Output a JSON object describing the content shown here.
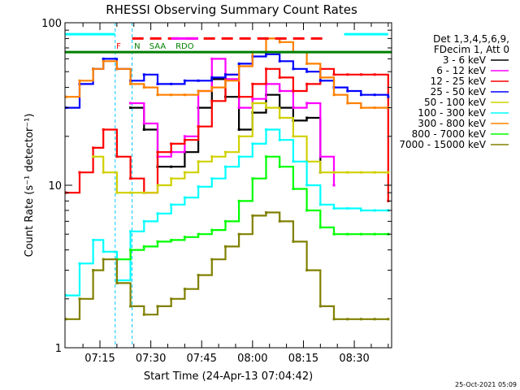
{
  "chart_data": {
    "type": "line",
    "title": "RHESSI Observing Summary Count Rates",
    "xlabel": "Start Time (24-Apr-13 07:04:42)",
    "ylabel": "Count Rate (s⁻¹ detector⁻¹)",
    "y_scale": "log",
    "ylim": [
      1,
      100
    ],
    "xlim": [
      "07:04:42",
      "08:41:00"
    ],
    "x_ticks": [
      "07:15",
      "07:30",
      "07:45",
      "08:00",
      "08:15",
      "08:30"
    ],
    "y_ticks": [
      "1",
      "10",
      "100"
    ],
    "legend_header": [
      "Det 1,3,4,5,6,9,",
      "FDecim 1, Att 0"
    ],
    "legend_position": "right",
    "annotations": [
      {
        "text": "F",
        "x": "07:20:30"
      },
      {
        "text": "N",
        "x": "07:26:00"
      },
      {
        "text": "SAA",
        "x": "07:32:00"
      },
      {
        "text": "RDO",
        "x": "07:40:00"
      }
    ],
    "dashed_markers_x": [
      "07:19:30",
      "07:24:30"
    ],
    "x": [
      "07:05",
      "07:09",
      "07:13",
      "07:16",
      "07:20",
      "07:24",
      "07:28",
      "07:32",
      "07:36",
      "07:40",
      "07:44",
      "07:48",
      "07:52",
      "07:56",
      "08:00",
      "08:04",
      "08:08",
      "08:12",
      "08:16",
      "08:20",
      "08:24",
      "08:28",
      "08:32",
      "08:36",
      "08:40"
    ],
    "series": [
      {
        "name": "3 - 6 keV",
        "color": "#000000",
        "values": [
          null,
          null,
          null,
          null,
          null,
          30,
          22,
          13,
          13,
          16,
          30,
          45,
          35,
          22,
          28,
          36,
          30,
          25,
          26,
          12,
          null,
          null,
          null,
          null,
          null
        ]
      },
      {
        "name": "6 - 12 keV",
        "color": "#ff00ff",
        "values": [
          null,
          null,
          null,
          null,
          null,
          32,
          24,
          15,
          16,
          20,
          38,
          60,
          45,
          30,
          34,
          42,
          38,
          30,
          32,
          15,
          10,
          null,
          null,
          null,
          null
        ]
      },
      {
        "name": "12 - 25 keV",
        "color": "#ff0000",
        "values": [
          9,
          12,
          17,
          22,
          15,
          11,
          9,
          16,
          18,
          19,
          23,
          33,
          48,
          35,
          42,
          52,
          46,
          38,
          42,
          52,
          48,
          48,
          48,
          48,
          8
        ]
      },
      {
        "name": "25 - 50 keV",
        "color": "#0000ff",
        "values": [
          30,
          42,
          52,
          60,
          52,
          44,
          48,
          42,
          42,
          44,
          44,
          46,
          48,
          56,
          62,
          64,
          58,
          52,
          50,
          44,
          40,
          38,
          36,
          36,
          35
        ]
      },
      {
        "name": "50 - 100 keV",
        "color": "#d0d000",
        "values": [
          null,
          null,
          15,
          12,
          9,
          9,
          9,
          10,
          11,
          12,
          14,
          15,
          16,
          20,
          32,
          30,
          26,
          20,
          14,
          12,
          12,
          12,
          12,
          12,
          12
        ]
      },
      {
        "name": "100 - 300 keV",
        "color": "#00ffff",
        "values": [
          2.1,
          3.3,
          4.6,
          3.9,
          2.6,
          5.2,
          6.0,
          6.7,
          7.6,
          8.4,
          9.8,
          11,
          13,
          15,
          18,
          22,
          19,
          14,
          10,
          7.6,
          7.2,
          7.2,
          7.0,
          7.0,
          7.0
        ]
      },
      {
        "name": "300 - 800 keV",
        "color": "#ff8000",
        "values": [
          35,
          44,
          52,
          58,
          52,
          42,
          40,
          36,
          36,
          36,
          38,
          40,
          44,
          54,
          66,
          80,
          76,
          66,
          56,
          46,
          36,
          32,
          30,
          30,
          30
        ]
      },
      {
        "name": "800 - 7000 keV",
        "color": "#00ff00",
        "values": [
          null,
          null,
          null,
          null,
          3.5,
          4.0,
          4.2,
          4.5,
          4.6,
          4.8,
          5.0,
          5.3,
          6.0,
          8.0,
          11,
          15,
          13,
          9.5,
          7.0,
          5.5,
          5.0,
          5.0,
          5.0,
          5.0,
          5.0
        ]
      },
      {
        "name": "7000 - 15000 keV",
        "color": "#808000",
        "values": [
          1.5,
          2.0,
          3.0,
          3.5,
          2.5,
          1.8,
          1.6,
          1.8,
          2.0,
          2.3,
          2.8,
          3.5,
          4.2,
          5.0,
          6.5,
          6.8,
          6.0,
          4.5,
          3.0,
          1.8,
          1.5,
          1.5,
          1.5,
          1.5,
          1.5
        ]
      }
    ],
    "flag_lines": [
      {
        "color": "#ff0000",
        "y": 80,
        "x_ranges": [
          [
            "07:24:30",
            "08:21:00"
          ]
        ],
        "dashed": true
      },
      {
        "color": "#008000",
        "y": 66,
        "x_ranges": [
          [
            "07:04:42",
            "08:41:00"
          ]
        ],
        "dashed": false
      },
      {
        "color": "#00ffff",
        "y": 85,
        "x_ranges": [
          [
            "07:04:42",
            "07:19:30"
          ],
          [
            "08:27:00",
            "08:40:00"
          ]
        ],
        "dashed": false
      },
      {
        "color": "#ff00ff",
        "y": 80,
        "x_ranges": [
          [
            "07:36:00",
            "07:44:00"
          ]
        ],
        "dashed": false
      }
    ]
  },
  "timestamp_stamp": "25-Oct-2021 05:09"
}
